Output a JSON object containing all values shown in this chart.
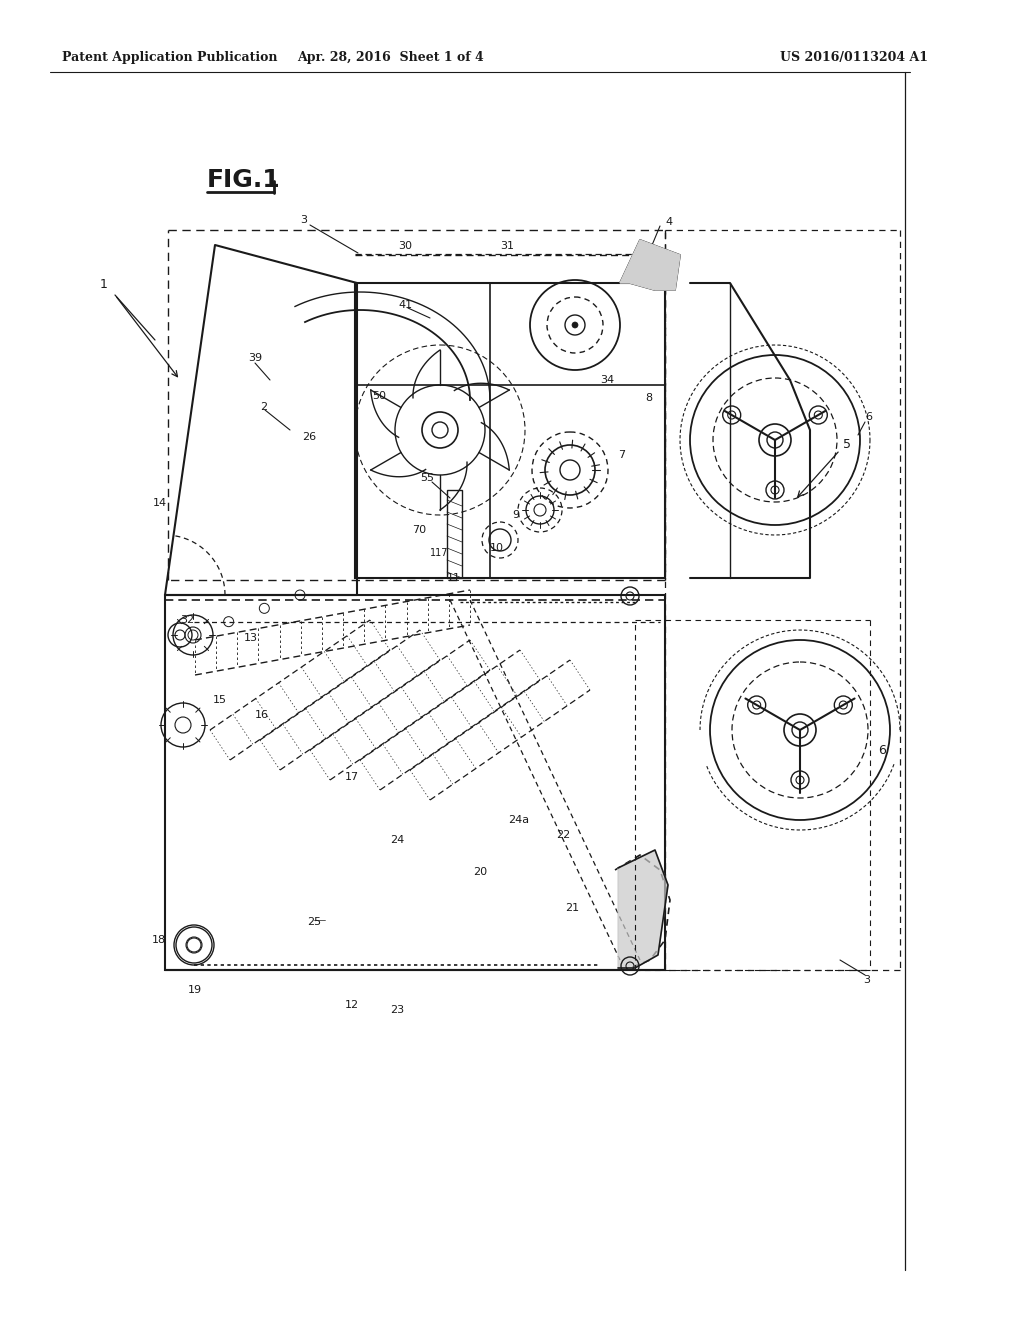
{
  "bg_color": "#ffffff",
  "line_color": "#1a1a1a",
  "header_left": "Patent Application Publication",
  "header_center": "Apr. 28, 2016  Sheet 1 of 4",
  "header_right": "US 2016/0113204 A1",
  "fig_label": "FIG. 1"
}
